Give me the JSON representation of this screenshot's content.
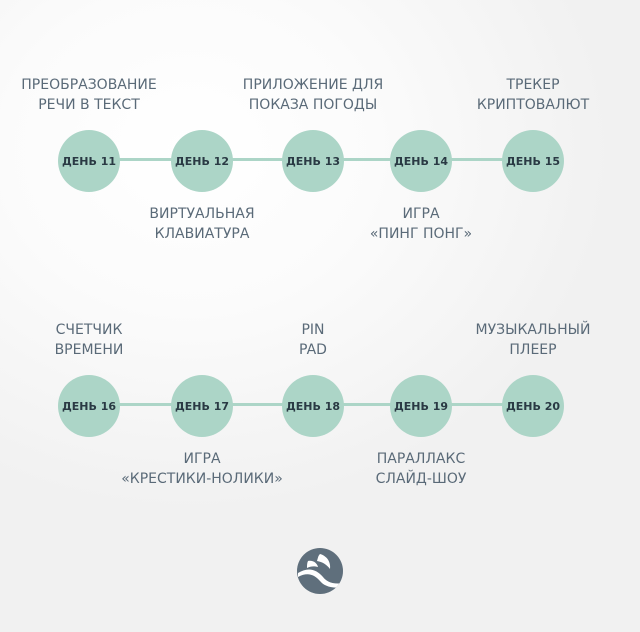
{
  "rows": [
    {
      "nodes": [
        {
          "day": "ДЕНЬ 11",
          "label": "ПРЕОБРАЗОВАНИЕ\nРЕЧИ В ТЕКСТ",
          "label_position": "above"
        },
        {
          "day": "ДЕНЬ 12",
          "label": "ВИРТУАЛЬНАЯ\nКЛАВИАТУРА",
          "label_position": "below"
        },
        {
          "day": "ДЕНЬ 13",
          "label": "ПРИЛОЖЕНИЕ ДЛЯ\nПОКАЗА ПОГОДЫ",
          "label_position": "above"
        },
        {
          "day": "ДЕНЬ 14",
          "label": "ИГРА\n«ПИНГ ПОНГ»",
          "label_position": "below"
        },
        {
          "day": "ДЕНЬ 15",
          "label": "ТРЕКЕР\nКРИПТОВАЛЮТ",
          "label_position": "above"
        }
      ]
    },
    {
      "nodes": [
        {
          "day": "ДЕНЬ 16",
          "label": "СЧЕТЧИК\nВРЕМЕНИ",
          "label_position": "above"
        },
        {
          "day": "ДЕНЬ 17",
          "label": "ИГРА\n«КРЕСТИКИ-НОЛИКИ»",
          "label_position": "below"
        },
        {
          "day": "ДЕНЬ 18",
          "label": "PIN\nPAD",
          "label_position": "above"
        },
        {
          "day": "ДЕНЬ 19",
          "label": "ПАРАЛЛАКС\nСЛАЙД-ШОУ",
          "label_position": "below"
        },
        {
          "day": "ДЕНЬ 20",
          "label": "МУЗЫКАЛЬНЫЙ\nПЛЕЕР",
          "label_position": "above"
        }
      ]
    }
  ],
  "colors": {
    "node_fill": "#acd5c7",
    "node_text": "#2a3a44",
    "label_text": "#5a6a78",
    "logo": "#5f6f7c"
  },
  "logo": {
    "icon": "leaf-logo-icon"
  }
}
